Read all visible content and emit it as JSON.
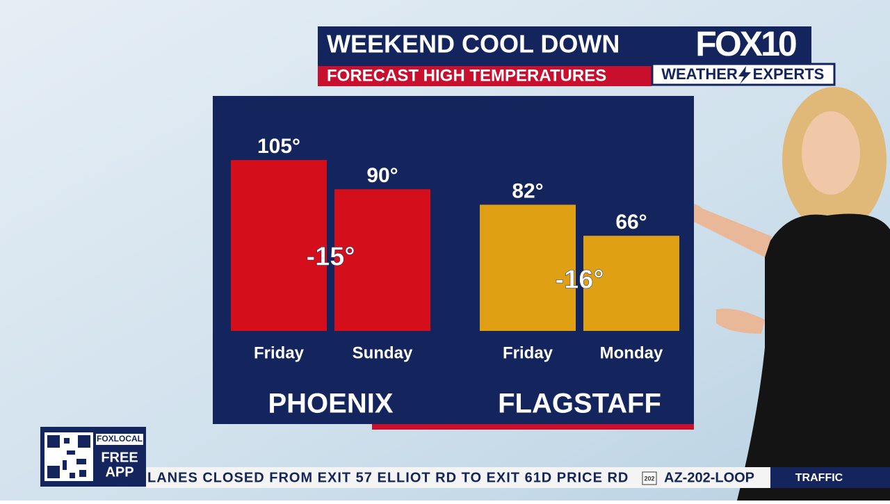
{
  "header": {
    "title": "WEEKEND COOL DOWN",
    "subtitle": "FORECAST HIGH TEMPERATURES"
  },
  "logo": {
    "brand": "FOX10",
    "tagline_left": "WEATHER",
    "tagline_right": "EXPERTS"
  },
  "promo": {
    "brand": "FOXLOCAL",
    "line1": "FREE",
    "line2": "APP"
  },
  "ticker": {
    "text": "LANES CLOSED FROM EXIT 57 ELLIOT RD TO EXIT 61D PRICE RD",
    "shield": "202",
    "route": "AZ-202-LOOP",
    "section": "TRAFFIC"
  },
  "chart_data": {
    "type": "bar",
    "ylim": [
      17,
      123
    ],
    "groups": [
      {
        "name": "PHOENIX",
        "color": "#d40e1b",
        "categories": [
          "Friday",
          "Sunday"
        ],
        "values": [
          105,
          90
        ],
        "value_labels": [
          "105°",
          "90°"
        ],
        "annotation": "-15°"
      },
      {
        "name": "FLAGSTAFF",
        "color": "#e0a014",
        "categories": [
          "Friday",
          "Monday"
        ],
        "values": [
          82,
          66
        ],
        "value_labels": [
          "82°",
          "66°"
        ],
        "annotation": "-16°"
      }
    ]
  }
}
